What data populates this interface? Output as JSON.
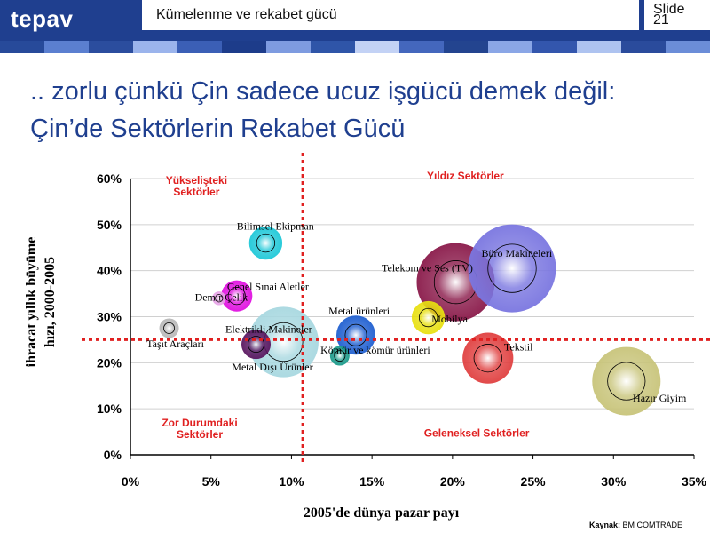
{
  "header": {
    "logo": "tepav",
    "section_title": "Kümelenme ve rekabet gücü",
    "slide_label": "Slide",
    "slide_number": "21"
  },
  "heading": {
    "line1": ".. zorlu çünkü Çin sadece ucuz işgücü demek değil:",
    "line2": "Çin’de Sektörlerin Rekabet Gücü"
  },
  "source": {
    "label": "Kaynak:",
    "text": "BM COMTRADE"
  },
  "colors": {
    "header_bg": "#1f3f8f",
    "title": "#1f3f8f",
    "quadrant_label": "#e02020",
    "reference_line": "#e02020",
    "stripe": [
      "#274a9a",
      "#5b7fd0",
      "#2b4d9e",
      "#9bb4ec",
      "#3b5fb6",
      "#1d3c8a",
      "#7e9be0",
      "#2f55a8",
      "#c3d2f5",
      "#4467bd",
      "#23448f",
      "#8aa6e6",
      "#3356ad",
      "#aec3f0",
      "#2a4b9c",
      "#6b8dd8"
    ]
  },
  "chart_data": {
    "type": "scatter",
    "title": "",
    "xlabel": "2005'de dünya pazar payı",
    "ylabel_lines": [
      "ihracat yıllık büyüme",
      "hızı, 2000-2005"
    ],
    "xlim": [
      0,
      35
    ],
    "ylim": [
      0,
      60
    ],
    "x_ticks": [
      "0%",
      "5%",
      "10%",
      "15%",
      "20%",
      "25%",
      "30%",
      "35%"
    ],
    "y_ticks": [
      "0%",
      "10%",
      "20%",
      "30%",
      "40%",
      "50%",
      "60%"
    ],
    "reference_lines": {
      "x": 10.7,
      "y": 25
    },
    "quadrant_labels": [
      {
        "text": [
          "Yükselişteki",
          "Sektörler"
        ],
        "x": 4.1,
        "y": 58.8
      },
      {
        "text": [
          "Yıldız Sektörler"
        ],
        "x": 20.8,
        "y": 59.8
      },
      {
        "text": [
          "Zor Durumdaki",
          "Sektörler"
        ],
        "x": 4.3,
        "y": 6.2
      },
      {
        "text": [
          "Geleneksel Sektörler"
        ],
        "x": 21.5,
        "y": 4.0
      }
    ],
    "series": [
      {
        "label": "Taşıt Araçları",
        "x": 2.4,
        "y": 27.5,
        "size": 1.0,
        "color": "#b8b8b8",
        "label_xy": [
          1.0,
          23.3
        ]
      },
      {
        "label": "Bilimsel Ekipman",
        "x": 8.4,
        "y": 46.0,
        "size": 1.7,
        "color": "#1ec8d8",
        "label_xy": [
          6.6,
          48.9
        ]
      },
      {
        "label": "Genel Sınai Aletler",
        "x": 6.6,
        "y": 34.5,
        "size": 1.6,
        "color": "#e010e0",
        "label_xy": [
          6.0,
          35.8
        ]
      },
      {
        "label": "Demir Çelik",
        "x": 5.5,
        "y": 34.0,
        "size": 0.7,
        "color": "#e7a3e7",
        "label_xy": [
          4.0,
          33.5
        ]
      },
      {
        "label": "Elektrikli Makineler",
        "x": 9.5,
        "y": 24.5,
        "size": 3.6,
        "color": "#a8d8e0",
        "label_xy": [
          5.9,
          26.5
        ]
      },
      {
        "label": "Metal Dışı Ürünler",
        "x": 7.8,
        "y": 24.0,
        "size": 1.5,
        "color": "#5a1660",
        "label_xy": [
          6.3,
          18.3
        ]
      },
      {
        "label": "Metal ürünleri",
        "x": 14.0,
        "y": 26.0,
        "size": 2.0,
        "color": "#1f5fd0",
        "label_xy": [
          12.3,
          30.5
        ]
      },
      {
        "label": "Kömür ve kömür ürünleri",
        "x": 13.0,
        "y": 21.5,
        "size": 1.0,
        "color": "#1a9a8a",
        "label_xy": [
          11.8,
          22.0
        ]
      },
      {
        "label": "Telekom ve Ses (TV)",
        "x": 20.2,
        "y": 37.5,
        "size": 4.0,
        "color": "#8a1a4a",
        "label_xy": [
          15.6,
          39.8
        ]
      },
      {
        "label": "Büro Makineleri",
        "x": 23.7,
        "y": 40.5,
        "size": 4.5,
        "color": "#7a76e0",
        "label_xy": [
          21.8,
          43.0
        ]
      },
      {
        "label": "Mobilya",
        "x": 18.5,
        "y": 29.8,
        "size": 1.7,
        "color": "#e8e010",
        "label_xy": [
          18.7,
          28.7
        ]
      },
      {
        "label": "Tekstil",
        "x": 22.2,
        "y": 21.0,
        "size": 2.6,
        "color": "#e04040",
        "label_xy": [
          23.2,
          22.7
        ]
      },
      {
        "label": "Hazır Giyim",
        "x": 30.8,
        "y": 16.0,
        "size": 3.5,
        "color": "#c8c47a",
        "label_xy": [
          31.2,
          11.6
        ]
      }
    ]
  }
}
